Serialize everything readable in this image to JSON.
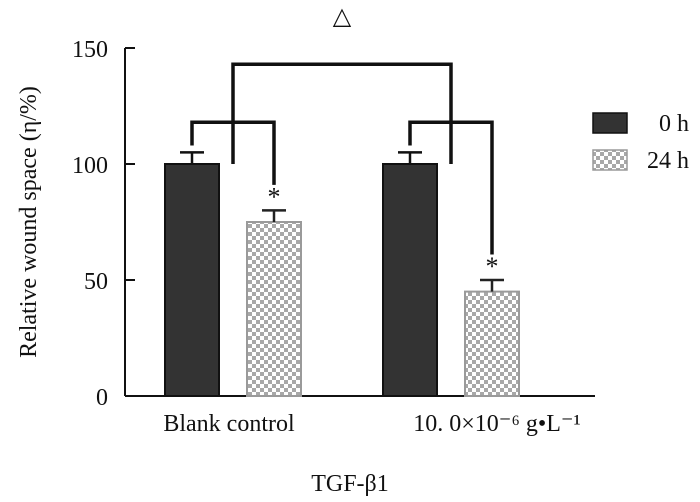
{
  "chart_data": {
    "type": "bar",
    "title": "",
    "xlabel": "TGF-β1",
    "ylabel": "Relative wound space (η/%)",
    "ylim": [
      0,
      150
    ],
    "yticks": [
      0,
      50,
      100,
      150
    ],
    "categories": [
      "Blank control",
      "10. 0×10⁻⁶  g•L⁻¹"
    ],
    "series": [
      {
        "name": "0 h",
        "values": [
          100,
          100
        ],
        "errors": [
          5,
          5
        ],
        "color": "#333333",
        "pattern": "solid"
      },
      {
        "name": "24 h",
        "values": [
          75,
          45
        ],
        "errors": [
          5,
          5
        ],
        "color": "#9a9a9a",
        "pattern": "checker"
      }
    ],
    "legend_position": "right",
    "annotations": {
      "significance_marker": "*",
      "group_comparison_marker": "△"
    }
  }
}
